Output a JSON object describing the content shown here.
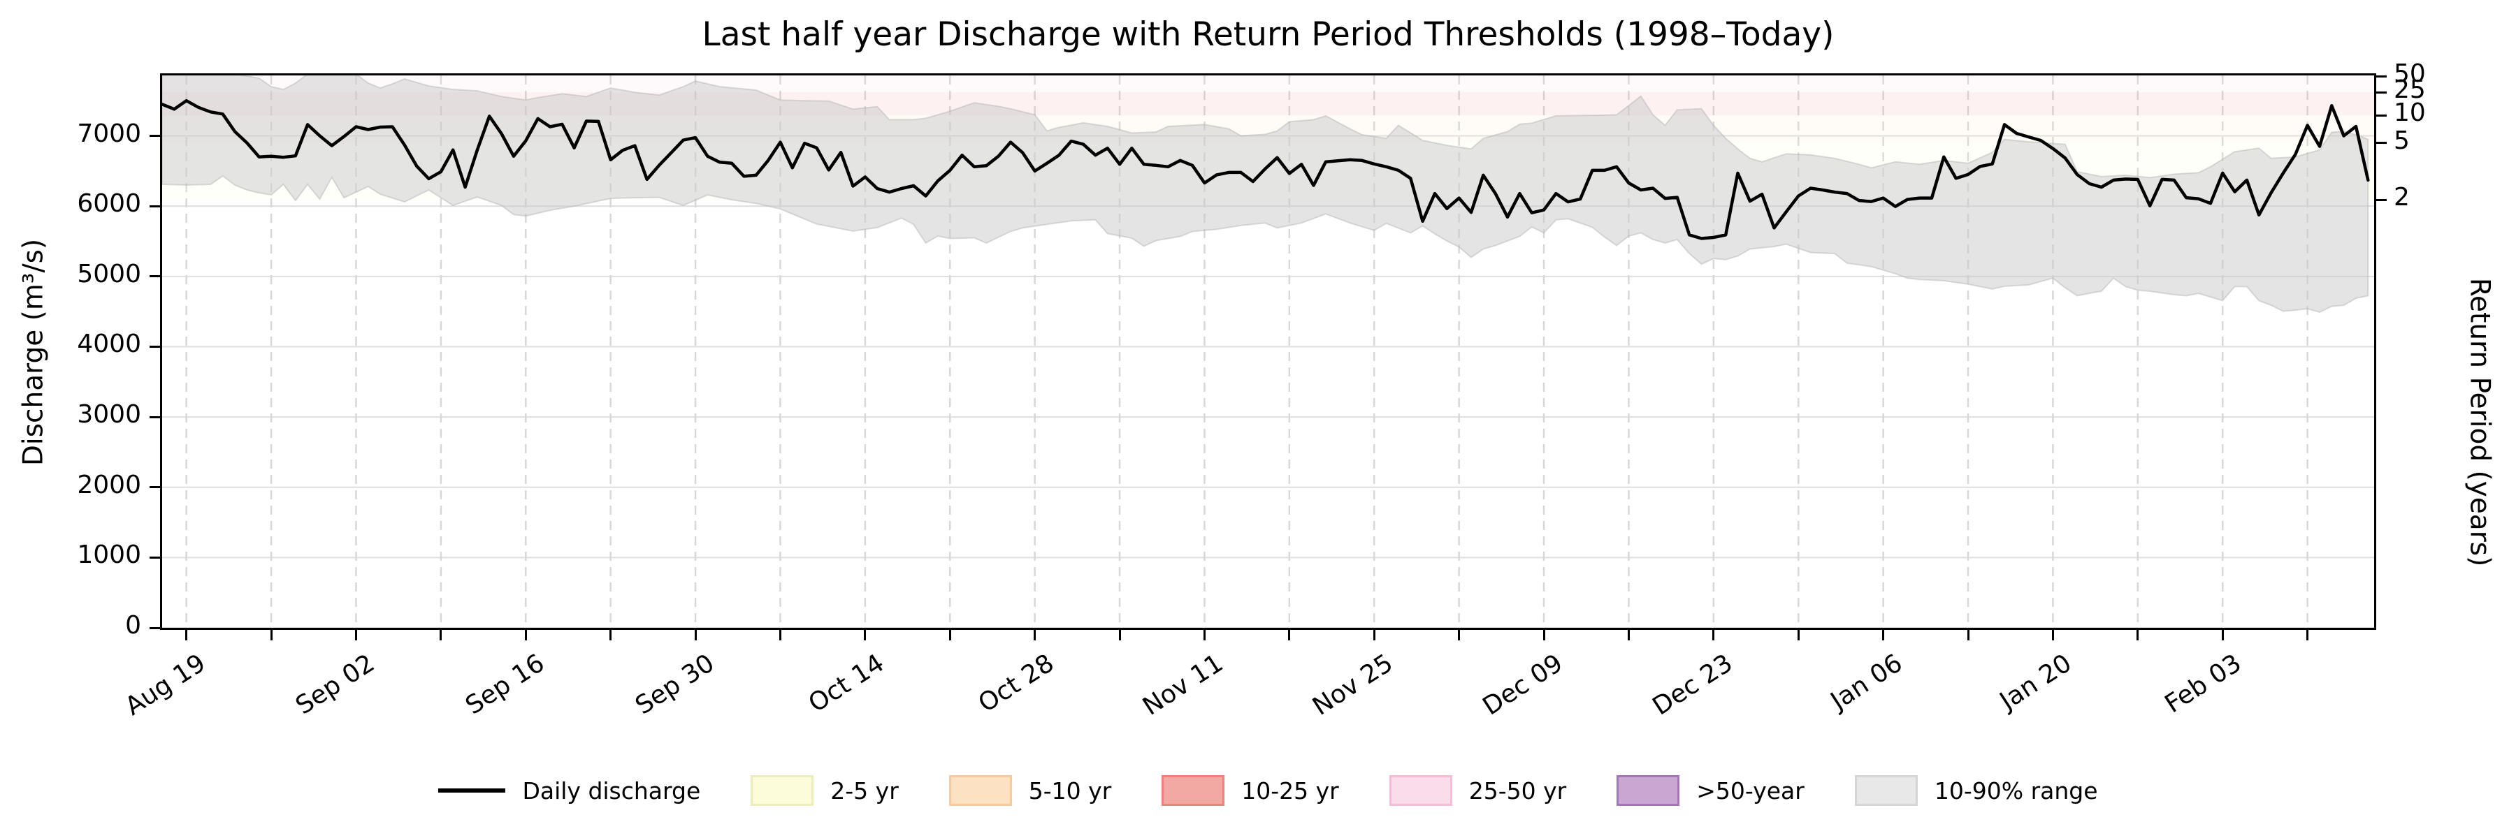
{
  "figure": {
    "title": "Last half year Discharge with Return Period Thresholds (1998–Today)",
    "ylabel_left": "Discharge (m³/s)",
    "ylabel_right": "Return Period (years)"
  },
  "legend": {
    "items": [
      {
        "label": "Daily discharge",
        "type": "line",
        "fill": "#000000",
        "border": "#000000"
      },
      {
        "label": "2-5 yr",
        "type": "patch",
        "fill": "#fcfcdb",
        "border": "#ededbb"
      },
      {
        "label": "5-10 yr",
        "type": "patch",
        "fill": "#fce1c2",
        "border": "#f8c99d"
      },
      {
        "label": "10-25 yr",
        "type": "patch",
        "fill": "#f3a9a3",
        "border": "#ec827b"
      },
      {
        "label": "25-50 yr",
        "type": "patch",
        "fill": "#fadcea",
        "border": "#f5bdd7"
      },
      {
        "label": ">50-year",
        "type": "patch",
        "fill": "#c8a7d3",
        "border": "#a577b8"
      },
      {
        "label": "10-90% range",
        "type": "patch",
        "fill": "#e8e8e8",
        "border": "#d5d5d5"
      }
    ]
  },
  "chart_data": {
    "type": "line",
    "title": "Last half year Discharge with Return Period Thresholds (1998–Today)",
    "xlabel": "",
    "ylabel": "Discharge (m³/s)",
    "ylabel_right": "Return Period (years)",
    "grid": true,
    "legend_position": "bottom",
    "ylim": [
      0,
      7860
    ],
    "xlim_days": [
      -2,
      180.5
    ],
    "y_ticks": [
      0,
      1000,
      2000,
      3000,
      4000,
      5000,
      6000,
      7000
    ],
    "x_minor_tick_interval_days": 7,
    "x_tick_labels": [
      {
        "label": "Aug 19",
        "day": 0
      },
      {
        "label": "Sep 02",
        "day": 14
      },
      {
        "label": "Sep 16",
        "day": 28
      },
      {
        "label": "Sep 30",
        "day": 42
      },
      {
        "label": "Oct 14",
        "day": 56
      },
      {
        "label": "Oct 28",
        "day": 70
      },
      {
        "label": "Nov 11",
        "day": 84
      },
      {
        "label": "Nov 25",
        "day": 98
      },
      {
        "label": "Dec 09",
        "day": 112
      },
      {
        "label": "Dec 23",
        "day": 126
      },
      {
        "label": "Jan 06",
        "day": 140
      },
      {
        "label": "Jan 20",
        "day": 154
      },
      {
        "label": "Feb 03",
        "day": 168
      }
    ],
    "right_axis_ticks": [
      {
        "label": "2",
        "discharge": 6090
      },
      {
        "label": "5",
        "discharge": 6900
      },
      {
        "label": "10",
        "discharge": 7290
      },
      {
        "label": "25",
        "discharge": 7620
      },
      {
        "label": "50",
        "discharge": 7850
      }
    ],
    "threshold_bands": [
      {
        "label": "2-5 yr",
        "from": 6090,
        "to": 6900,
        "fill": "#fcfcdb"
      },
      {
        "label": "5-10 yr",
        "from": 6900,
        "to": 7290,
        "fill": "#fce1c2"
      },
      {
        "label": "10-25 yr",
        "from": 7290,
        "to": 7620,
        "fill": "#f3a9a3"
      },
      {
        "label": "25-50 yr",
        "from": 7620,
        "to": 7850,
        "fill": "#fadcea"
      },
      {
        "label": ">50-year",
        "from": 7850,
        "to": 7860,
        "fill": "#c8a7d3"
      }
    ],
    "band_opacity": 0.15,
    "range_band": {
      "name": "10-90% range",
      "fill": "rgba(202,202,202,0.5)",
      "edge": "rgba(178,178,178,0.45)",
      "p90": [
        [
          -2,
          7880
        ],
        [
          4,
          7880
        ],
        [
          6,
          7820
        ],
        [
          7,
          7700
        ],
        [
          8,
          7660
        ],
        [
          9,
          7750
        ],
        [
          10,
          7880
        ],
        [
          14,
          7880
        ],
        [
          15,
          7750
        ],
        [
          16,
          7680
        ],
        [
          17,
          7740
        ],
        [
          18,
          7810
        ],
        [
          20,
          7710
        ],
        [
          22,
          7660
        ],
        [
          24,
          7640
        ],
        [
          26,
          7560
        ],
        [
          28,
          7510
        ],
        [
          29,
          7545
        ],
        [
          31,
          7600
        ],
        [
          33,
          7560
        ],
        [
          35,
          7680
        ],
        [
          37,
          7620
        ],
        [
          39,
          7580
        ],
        [
          41,
          7700
        ],
        [
          42,
          7780
        ],
        [
          44,
          7700
        ],
        [
          47,
          7650
        ],
        [
          49,
          7510
        ],
        [
          51,
          7500
        ],
        [
          53,
          7495
        ],
        [
          55,
          7380
        ],
        [
          57,
          7415
        ],
        [
          58,
          7230
        ],
        [
          60,
          7230
        ],
        [
          61,
          7250
        ],
        [
          63,
          7350
        ],
        [
          65,
          7470
        ],
        [
          67,
          7420
        ],
        [
          68,
          7385
        ],
        [
          70,
          7300
        ],
        [
          71,
          7070
        ],
        [
          72,
          7120
        ],
        [
          74,
          7185
        ],
        [
          76,
          7135
        ],
        [
          78,
          7040
        ],
        [
          80,
          7055
        ],
        [
          81,
          7135
        ],
        [
          84,
          7160
        ],
        [
          86,
          7100
        ],
        [
          87,
          7000
        ],
        [
          89,
          7020
        ],
        [
          90,
          7070
        ],
        [
          91,
          7200
        ],
        [
          93,
          7230
        ],
        [
          94,
          7285
        ],
        [
          96,
          7100
        ],
        [
          97,
          7015
        ],
        [
          99,
          6965
        ],
        [
          100,
          7150
        ],
        [
          102,
          6935
        ],
        [
          104,
          6865
        ],
        [
          106,
          6815
        ],
        [
          107,
          6965
        ],
        [
          109,
          7060
        ],
        [
          110,
          7165
        ],
        [
          111,
          7180
        ],
        [
          113,
          7285
        ],
        [
          115,
          7290
        ],
        [
          117,
          7295
        ],
        [
          118,
          7300
        ],
        [
          119,
          7430
        ],
        [
          120,
          7565
        ],
        [
          121,
          7300
        ],
        [
          122,
          7150
        ],
        [
          123,
          7370
        ],
        [
          125,
          7385
        ],
        [
          126,
          7150
        ],
        [
          127,
          6965
        ],
        [
          128,
          6815
        ],
        [
          129,
          6680
        ],
        [
          130,
          6630
        ],
        [
          132,
          6745
        ],
        [
          134,
          6730
        ],
        [
          136,
          6680
        ],
        [
          138,
          6595
        ],
        [
          139,
          6545
        ],
        [
          141,
          6630
        ],
        [
          143,
          6595
        ],
        [
          145,
          6650
        ],
        [
          147,
          6610
        ],
        [
          149,
          6765
        ],
        [
          150,
          6950
        ],
        [
          152,
          6915
        ],
        [
          155,
          6880
        ],
        [
          156,
          6490
        ],
        [
          158,
          6420
        ],
        [
          160,
          6440
        ],
        [
          162,
          6405
        ],
        [
          164,
          6455
        ],
        [
          166,
          6475
        ],
        [
          167,
          6560
        ],
        [
          169,
          6775
        ],
        [
          171,
          6825
        ],
        [
          172,
          6680
        ],
        [
          174,
          6700
        ],
        [
          176,
          6800
        ],
        [
          177,
          7050
        ],
        [
          178,
          7065
        ],
        [
          179,
          7015
        ],
        [
          180,
          6950
        ]
      ],
      "p10": [
        [
          -2,
          6310
        ],
        [
          0,
          6300
        ],
        [
          2,
          6310
        ],
        [
          3,
          6430
        ],
        [
          4,
          6300
        ],
        [
          5,
          6230
        ],
        [
          6,
          6190
        ],
        [
          7,
          6160
        ],
        [
          8,
          6310
        ],
        [
          9,
          6080
        ],
        [
          10,
          6310
        ],
        [
          11,
          6100
        ],
        [
          12,
          6410
        ],
        [
          13,
          6120
        ],
        [
          14,
          6200
        ],
        [
          15,
          6280
        ],
        [
          16,
          6170
        ],
        [
          18,
          6060
        ],
        [
          20,
          6230
        ],
        [
          22,
          6010
        ],
        [
          24,
          6130
        ],
        [
          26,
          6010
        ],
        [
          27,
          5880
        ],
        [
          28,
          5860
        ],
        [
          30,
          5940
        ],
        [
          32,
          6000
        ],
        [
          35,
          6110
        ],
        [
          37,
          6120
        ],
        [
          39,
          6125
        ],
        [
          41,
          6010
        ],
        [
          43,
          6160
        ],
        [
          45,
          6090
        ],
        [
          47,
          6040
        ],
        [
          49,
          5960
        ],
        [
          52,
          5745
        ],
        [
          55,
          5645
        ],
        [
          57,
          5695
        ],
        [
          59,
          5830
        ],
        [
          60,
          5740
        ],
        [
          61,
          5475
        ],
        [
          62,
          5575
        ],
        [
          63,
          5540
        ],
        [
          65,
          5550
        ],
        [
          66,
          5475
        ],
        [
          68,
          5640
        ],
        [
          69,
          5690
        ],
        [
          71,
          5740
        ],
        [
          73,
          5790
        ],
        [
          75,
          5805
        ],
        [
          76,
          5610
        ],
        [
          78,
          5545
        ],
        [
          79,
          5430
        ],
        [
          80,
          5510
        ],
        [
          82,
          5570
        ],
        [
          83,
          5640
        ],
        [
          85,
          5670
        ],
        [
          87,
          5725
        ],
        [
          89,
          5760
        ],
        [
          90,
          5690
        ],
        [
          92,
          5760
        ],
        [
          94,
          5890
        ],
        [
          96,
          5760
        ],
        [
          98,
          5655
        ],
        [
          99,
          5755
        ],
        [
          101,
          5620
        ],
        [
          102,
          5720
        ],
        [
          103,
          5605
        ],
        [
          104,
          5505
        ],
        [
          105,
          5420
        ],
        [
          106,
          5270
        ],
        [
          107,
          5390
        ],
        [
          108,
          5440
        ],
        [
          110,
          5570
        ],
        [
          111,
          5705
        ],
        [
          112,
          5620
        ],
        [
          113,
          5805
        ],
        [
          114,
          5820
        ],
        [
          116,
          5700
        ],
        [
          117,
          5560
        ],
        [
          118,
          5440
        ],
        [
          119,
          5575
        ],
        [
          120,
          5620
        ],
        [
          121,
          5525
        ],
        [
          122,
          5475
        ],
        [
          123,
          5525
        ],
        [
          124,
          5325
        ],
        [
          125,
          5175
        ],
        [
          126,
          5255
        ],
        [
          127,
          5240
        ],
        [
          128,
          5290
        ],
        [
          129,
          5390
        ],
        [
          131,
          5425
        ],
        [
          132,
          5460
        ],
        [
          134,
          5340
        ],
        [
          136,
          5325
        ],
        [
          137,
          5190
        ],
        [
          139,
          5140
        ],
        [
          140,
          5090
        ],
        [
          141,
          5040
        ],
        [
          142,
          4975
        ],
        [
          143,
          4955
        ],
        [
          145,
          4940
        ],
        [
          147,
          4890
        ],
        [
          149,
          4820
        ],
        [
          150,
          4860
        ],
        [
          152,
          4880
        ],
        [
          154,
          4975
        ],
        [
          155,
          4840
        ],
        [
          156,
          4725
        ],
        [
          157,
          4760
        ],
        [
          158,
          4790
        ],
        [
          159,
          4975
        ],
        [
          160,
          4855
        ],
        [
          161,
          4805
        ],
        [
          162,
          4790
        ],
        [
          164,
          4740
        ],
        [
          165,
          4725
        ],
        [
          166,
          4760
        ],
        [
          168,
          4655
        ],
        [
          169,
          4855
        ],
        [
          170,
          4855
        ],
        [
          171,
          4655
        ],
        [
          172,
          4590
        ],
        [
          173,
          4505
        ],
        [
          174,
          4520
        ],
        [
          175,
          4540
        ],
        [
          176,
          4490
        ],
        [
          177,
          4575
        ],
        [
          178,
          4590
        ],
        [
          179,
          4690
        ],
        [
          180,
          4725
        ]
      ]
    },
    "series": [
      {
        "name": "Daily discharge",
        "color": "#000000",
        "start_day": -2,
        "day_step": 1,
        "values": [
          7450,
          7380,
          7500,
          7405,
          7340,
          7310,
          7060,
          6900,
          6700,
          6710,
          6695,
          6715,
          7160,
          7000,
          6860,
          6990,
          7130,
          7090,
          7125,
          7130,
          6870,
          6570,
          6390,
          6490,
          6800,
          6270,
          6800,
          7280,
          7030,
          6710,
          6930,
          7245,
          7130,
          7165,
          6830,
          7210,
          7205,
          6660,
          6795,
          6860,
          6380,
          6580,
          6760,
          6940,
          6975,
          6710,
          6625,
          6610,
          6425,
          6440,
          6650,
          6910,
          6545,
          6895,
          6830,
          6515,
          6765,
          6285,
          6415,
          6250,
          6200,
          6250,
          6290,
          6145,
          6360,
          6510,
          6725,
          6560,
          6575,
          6710,
          6910,
          6760,
          6500,
          6610,
          6725,
          6925,
          6880,
          6725,
          6825,
          6595,
          6825,
          6595,
          6580,
          6560,
          6650,
          6580,
          6330,
          6445,
          6480,
          6480,
          6350,
          6530,
          6690,
          6465,
          6595,
          6295,
          6630,
          6645,
          6660,
          6650,
          6600,
          6560,
          6510,
          6395,
          5785,
          6180,
          5965,
          6115,
          5910,
          6440,
          6180,
          5845,
          6180,
          5905,
          5945,
          6180,
          6060,
          6100,
          6510,
          6510,
          6560,
          6330,
          6230,
          6255,
          6110,
          6125,
          5590,
          5540,
          5555,
          5590,
          6470,
          6070,
          6170,
          5690,
          5920,
          6145,
          6255,
          6230,
          6200,
          6180,
          6080,
          6065,
          6115,
          5995,
          6095,
          6115,
          6115,
          6700,
          6395,
          6450,
          6565,
          6600,
          7160,
          7035,
          6985,
          6935,
          6820,
          6685,
          6450,
          6320,
          6270,
          6370,
          6385,
          6380,
          6005,
          6380,
          6370,
          6120,
          6105,
          6040,
          6470,
          6205,
          6370,
          5875,
          6190,
          6470,
          6735,
          7150,
          6850,
          7430,
          7000,
          7135,
          6370
        ]
      }
    ],
    "colors": {
      "gridline_h": "#dedede",
      "gridline_v": "#d8d8d8",
      "spine": "#000000",
      "daily_line": "#000000"
    }
  }
}
